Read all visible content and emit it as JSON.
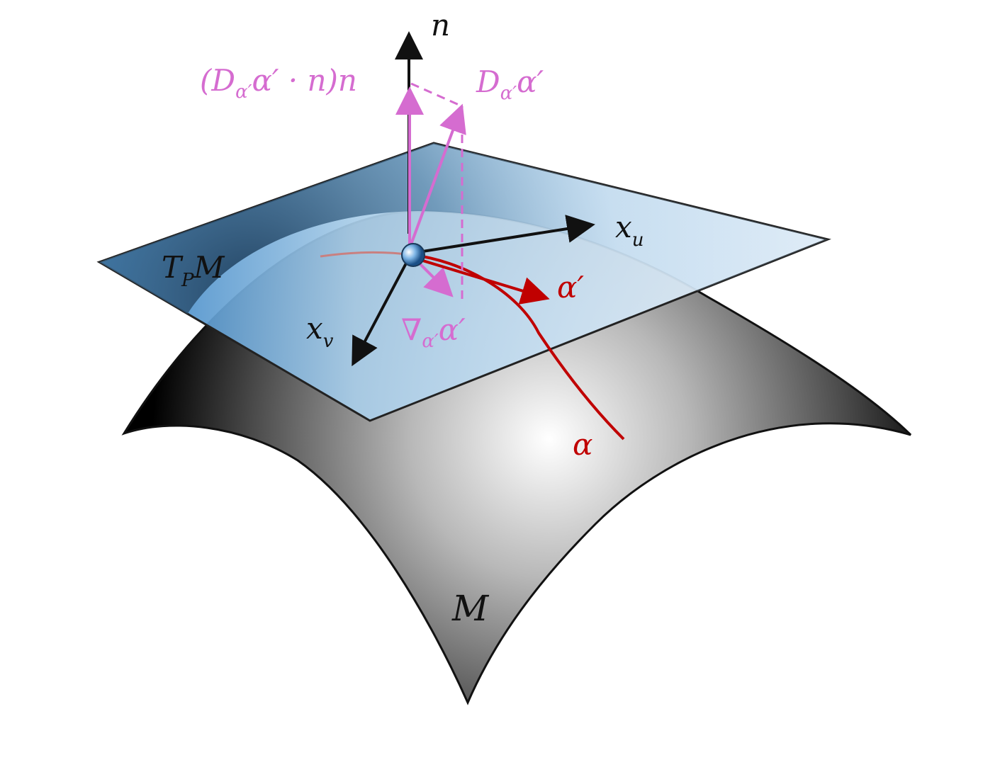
{
  "labels": {
    "normal": "n",
    "normal_component": "(D",
    "normal_component_sub": "α′",
    "normal_component_tail": "α′ · n)n",
    "covariant_derivative": "D",
    "covariant_derivative_sub": "α′",
    "covariant_derivative_tail": "α′",
    "basis_u": "x",
    "basis_u_sub": "u",
    "basis_v": "x",
    "basis_v_sub": "v",
    "tangent_plane": "T",
    "tangent_plane_sub": "P",
    "tangent_plane_tail": "M",
    "velocity": "α′",
    "tangential_derivative": "∇",
    "tangential_derivative_sub": "α′",
    "tangential_derivative_tail": "α′",
    "curve": "α",
    "surface": "M"
  },
  "colors": {
    "surface_dark": "#000000",
    "surface_light": "#ffffff",
    "plane_dark": "#2a7ac0",
    "plane_light": "#e6f1fb",
    "pink": "#d56cd0",
    "red": "#c00000",
    "black": "#111111"
  }
}
